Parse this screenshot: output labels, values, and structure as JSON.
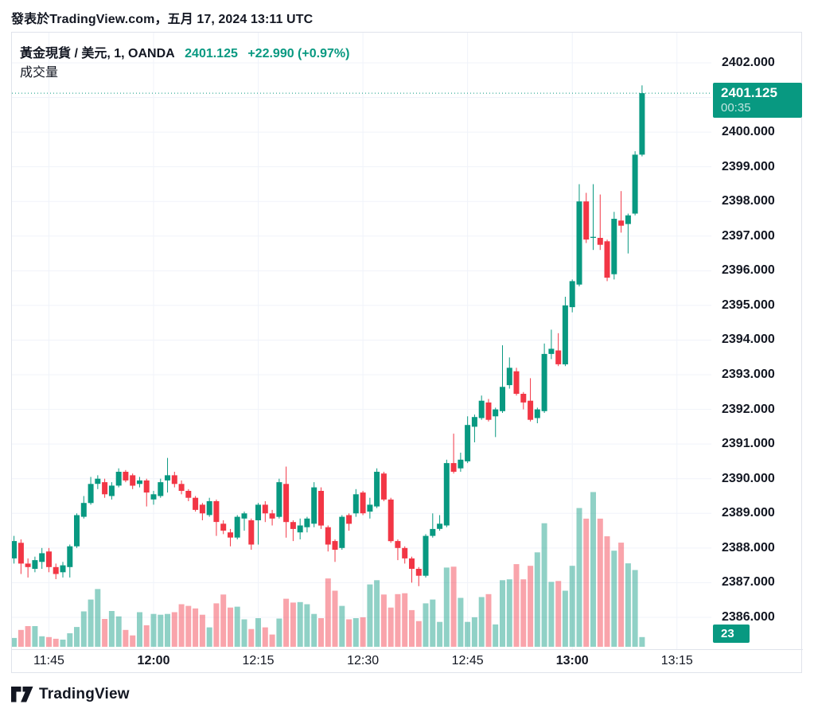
{
  "header": {
    "published_line": "發表於TradingView.com，五月 17, 2024 13:11 UTC"
  },
  "title": {
    "symbol_line": "黃金現貨 / 美元, 1, OANDA",
    "last_price": "2401.125",
    "change": "+22.990 (+0.97%)",
    "indicator_label": "成交量"
  },
  "price_axis": {
    "labels": [
      "2402.000",
      "2400.000",
      "2399.000",
      "2398.000",
      "2397.000",
      "2396.000",
      "2395.000",
      "2394.000",
      "2393.000",
      "2392.000",
      "2391.000",
      "2390.000",
      "2389.000",
      "2388.000",
      "2387.000",
      "2386.000"
    ],
    "last_price_badge": {
      "price": "2401.125",
      "countdown": "00:35",
      "value": 2401.125
    },
    "volume_badge": "23"
  },
  "time_axis": {
    "labels": [
      {
        "t": "11:45",
        "bold": false
      },
      {
        "t": "12:00",
        "bold": true
      },
      {
        "t": "12:15",
        "bold": false
      },
      {
        "t": "12:30",
        "bold": false
      },
      {
        "t": "12:45",
        "bold": false
      },
      {
        "t": "13:00",
        "bold": true
      },
      {
        "t": "13:15",
        "bold": false
      }
    ]
  },
  "footer": {
    "brand": "TradingView"
  },
  "colors": {
    "up": "#089981",
    "down": "#F23645",
    "up_volume": "rgba(8,153,129,0.45)",
    "down_volume": "rgba(242,54,69,0.45)",
    "accent": "#089981",
    "text": "#131722",
    "grid": "#F0F3FA",
    "border": "#E0E3EB",
    "badge_text": "#FFFFFF"
  },
  "chart_data": {
    "type": "candlestick+volume",
    "title": "黃金現貨 / 美元, 1, OANDA",
    "interval_minutes": 1,
    "price_axis_range": [
      2386,
      2402
    ],
    "grid": true,
    "last_price": 2401.125,
    "last_volume": 23,
    "candles": [
      {
        "t": "11:40",
        "o": 2387.7,
        "h": 2388.35,
        "l": 2387.55,
        "c": 2388.2,
        "v": 21
      },
      {
        "t": "11:41",
        "o": 2388.15,
        "h": 2388.25,
        "l": 2387.25,
        "c": 2387.55,
        "v": 40
      },
      {
        "t": "11:42",
        "o": 2387.55,
        "h": 2387.7,
        "l": 2387.15,
        "c": 2387.45,
        "v": 49
      },
      {
        "t": "11:43",
        "o": 2387.4,
        "h": 2387.75,
        "l": 2387.3,
        "c": 2387.65,
        "v": 49
      },
      {
        "t": "11:44",
        "o": 2387.6,
        "h": 2388.0,
        "l": 2387.4,
        "c": 2387.85,
        "v": 25
      },
      {
        "t": "11:45",
        "o": 2387.9,
        "h": 2388.0,
        "l": 2387.3,
        "c": 2387.45,
        "v": 23
      },
      {
        "t": "11:46",
        "o": 2387.45,
        "h": 2387.55,
        "l": 2387.1,
        "c": 2387.25,
        "v": 19
      },
      {
        "t": "11:47",
        "o": 2387.3,
        "h": 2387.6,
        "l": 2387.15,
        "c": 2387.5,
        "v": 17
      },
      {
        "t": "11:48",
        "o": 2387.45,
        "h": 2388.1,
        "l": 2387.15,
        "c": 2388.05,
        "v": 32
      },
      {
        "t": "11:49",
        "o": 2388.05,
        "h": 2389.0,
        "l": 2388.0,
        "c": 2388.95,
        "v": 47
      },
      {
        "t": "11:50",
        "o": 2388.9,
        "h": 2389.5,
        "l": 2388.85,
        "c": 2389.3,
        "v": 84
      },
      {
        "t": "11:51",
        "o": 2389.3,
        "h": 2390.05,
        "l": 2389.25,
        "c": 2389.85,
        "v": 112
      },
      {
        "t": "11:52",
        "o": 2389.85,
        "h": 2390.1,
        "l": 2389.7,
        "c": 2390.0,
        "v": 137
      },
      {
        "t": "11:53",
        "o": 2389.9,
        "h": 2390.0,
        "l": 2389.45,
        "c": 2389.55,
        "v": 66
      },
      {
        "t": "11:54",
        "o": 2389.5,
        "h": 2389.9,
        "l": 2389.4,
        "c": 2389.8,
        "v": 85
      },
      {
        "t": "11:55",
        "o": 2389.8,
        "h": 2390.3,
        "l": 2389.75,
        "c": 2390.2,
        "v": 72
      },
      {
        "t": "11:56",
        "o": 2390.2,
        "h": 2390.25,
        "l": 2389.9,
        "c": 2389.95,
        "v": 40
      },
      {
        "t": "11:57",
        "o": 2390.1,
        "h": 2390.15,
        "l": 2389.7,
        "c": 2389.8,
        "v": 27
      },
      {
        "t": "11:58",
        "o": 2389.85,
        "h": 2390.05,
        "l": 2389.75,
        "c": 2389.95,
        "v": 82
      },
      {
        "t": "11:59",
        "o": 2389.95,
        "h": 2390.0,
        "l": 2389.2,
        "c": 2389.6,
        "v": 51
      },
      {
        "t": "12:00",
        "o": 2389.4,
        "h": 2389.65,
        "l": 2389.25,
        "c": 2389.55,
        "v": 78
      },
      {
        "t": "12:01",
        "o": 2389.5,
        "h": 2390.0,
        "l": 2389.45,
        "c": 2389.9,
        "v": 76
      },
      {
        "t": "12:02",
        "o": 2389.95,
        "h": 2390.6,
        "l": 2389.6,
        "c": 2390.1,
        "v": 78
      },
      {
        "t": "12:03",
        "o": 2390.1,
        "h": 2390.2,
        "l": 2389.75,
        "c": 2389.85,
        "v": 82
      },
      {
        "t": "12:04",
        "o": 2389.85,
        "h": 2389.95,
        "l": 2389.55,
        "c": 2389.65,
        "v": 101
      },
      {
        "t": "12:05",
        "o": 2389.65,
        "h": 2389.7,
        "l": 2389.35,
        "c": 2389.45,
        "v": 97
      },
      {
        "t": "12:06",
        "o": 2389.45,
        "h": 2389.5,
        "l": 2389.05,
        "c": 2389.1,
        "v": 91
      },
      {
        "t": "12:07",
        "o": 2389.25,
        "h": 2389.3,
        "l": 2388.8,
        "c": 2389.0,
        "v": 76
      },
      {
        "t": "12:08",
        "o": 2388.95,
        "h": 2389.45,
        "l": 2388.9,
        "c": 2389.35,
        "v": 46
      },
      {
        "t": "12:09",
        "o": 2389.35,
        "h": 2389.4,
        "l": 2388.35,
        "c": 2388.75,
        "v": 103
      },
      {
        "t": "12:10",
        "o": 2388.7,
        "h": 2388.8,
        "l": 2388.4,
        "c": 2388.5,
        "v": 124
      },
      {
        "t": "12:11",
        "o": 2388.45,
        "h": 2388.55,
        "l": 2388.05,
        "c": 2388.3,
        "v": 93
      },
      {
        "t": "12:12",
        "o": 2388.3,
        "h": 2388.95,
        "l": 2388.25,
        "c": 2388.9,
        "v": 95
      },
      {
        "t": "12:13",
        "o": 2388.85,
        "h": 2389.05,
        "l": 2388.5,
        "c": 2389.0,
        "v": 65
      },
      {
        "t": "12:14",
        "o": 2388.8,
        "h": 2388.85,
        "l": 2387.95,
        "c": 2388.1,
        "v": 42
      },
      {
        "t": "12:15",
        "o": 2388.8,
        "h": 2389.3,
        "l": 2388.1,
        "c": 2389.25,
        "v": 68
      },
      {
        "t": "12:16",
        "o": 2389.25,
        "h": 2389.35,
        "l": 2388.75,
        "c": 2389.0,
        "v": 46
      },
      {
        "t": "12:17",
        "o": 2389.0,
        "h": 2389.1,
        "l": 2388.65,
        "c": 2388.85,
        "v": 29
      },
      {
        "t": "12:18",
        "o": 2388.9,
        "h": 2390.0,
        "l": 2388.85,
        "c": 2389.9,
        "v": 67
      },
      {
        "t": "12:19",
        "o": 2389.85,
        "h": 2390.35,
        "l": 2388.3,
        "c": 2388.75,
        "v": 114
      },
      {
        "t": "12:20",
        "o": 2388.75,
        "h": 2388.8,
        "l": 2388.2,
        "c": 2388.55,
        "v": 105
      },
      {
        "t": "12:21",
        "o": 2388.45,
        "h": 2388.85,
        "l": 2388.25,
        "c": 2388.65,
        "v": 106
      },
      {
        "t": "12:22",
        "o": 2388.6,
        "h": 2388.9,
        "l": 2388.45,
        "c": 2388.85,
        "v": 101
      },
      {
        "t": "12:23",
        "o": 2388.7,
        "h": 2389.9,
        "l": 2388.6,
        "c": 2389.75,
        "v": 78
      },
      {
        "t": "12:24",
        "o": 2389.65,
        "h": 2389.75,
        "l": 2388.55,
        "c": 2388.65,
        "v": 68
      },
      {
        "t": "12:25",
        "o": 2388.6,
        "h": 2388.65,
        "l": 2387.9,
        "c": 2388.1,
        "v": 162
      },
      {
        "t": "12:26",
        "o": 2388.2,
        "h": 2388.25,
        "l": 2387.6,
        "c": 2387.95,
        "v": 133
      },
      {
        "t": "12:27",
        "o": 2388.0,
        "h": 2388.95,
        "l": 2387.95,
        "c": 2388.9,
        "v": 97
      },
      {
        "t": "12:28",
        "o": 2388.95,
        "h": 2389.0,
        "l": 2388.5,
        "c": 2388.7,
        "v": 65
      },
      {
        "t": "12:29",
        "o": 2389.0,
        "h": 2389.7,
        "l": 2388.9,
        "c": 2389.55,
        "v": 68
      },
      {
        "t": "12:30",
        "o": 2389.6,
        "h": 2389.65,
        "l": 2388.95,
        "c": 2389.0,
        "v": 70
      },
      {
        "t": "12:31",
        "o": 2389.05,
        "h": 2389.45,
        "l": 2388.85,
        "c": 2389.25,
        "v": 148
      },
      {
        "t": "12:32",
        "o": 2389.2,
        "h": 2390.3,
        "l": 2389.15,
        "c": 2390.2,
        "v": 158
      },
      {
        "t": "12:33",
        "o": 2390.15,
        "h": 2390.2,
        "l": 2389.35,
        "c": 2389.4,
        "v": 124
      },
      {
        "t": "12:34",
        "o": 2389.4,
        "h": 2389.45,
        "l": 2388.15,
        "c": 2388.2,
        "v": 93
      },
      {
        "t": "12:35",
        "o": 2388.2,
        "h": 2388.25,
        "l": 2387.65,
        "c": 2388.0,
        "v": 125
      },
      {
        "t": "12:36",
        "o": 2388.0,
        "h": 2388.05,
        "l": 2387.55,
        "c": 2387.7,
        "v": 127
      },
      {
        "t": "12:37",
        "o": 2387.7,
        "h": 2387.75,
        "l": 2387.0,
        "c": 2387.4,
        "v": 87
      },
      {
        "t": "12:38",
        "o": 2387.4,
        "h": 2387.45,
        "l": 2386.9,
        "c": 2387.2,
        "v": 61
      },
      {
        "t": "12:39",
        "o": 2387.2,
        "h": 2388.4,
        "l": 2387.15,
        "c": 2388.35,
        "v": 103
      },
      {
        "t": "12:40",
        "o": 2388.35,
        "h": 2389.0,
        "l": 2388.3,
        "c": 2388.55,
        "v": 112
      },
      {
        "t": "12:41",
        "o": 2388.55,
        "h": 2388.95,
        "l": 2388.5,
        "c": 2388.7,
        "v": 59
      },
      {
        "t": "12:42",
        "o": 2388.65,
        "h": 2390.55,
        "l": 2388.6,
        "c": 2390.45,
        "v": 188
      },
      {
        "t": "12:43",
        "o": 2390.45,
        "h": 2391.3,
        "l": 2390.15,
        "c": 2390.2,
        "v": 190
      },
      {
        "t": "12:44",
        "o": 2390.3,
        "h": 2390.75,
        "l": 2390.2,
        "c": 2390.55,
        "v": 116
      },
      {
        "t": "12:45",
        "o": 2390.5,
        "h": 2391.8,
        "l": 2390.45,
        "c": 2391.55,
        "v": 59
      },
      {
        "t": "12:46",
        "o": 2391.5,
        "h": 2391.85,
        "l": 2391.05,
        "c": 2391.78,
        "v": 70
      },
      {
        "t": "12:47",
        "o": 2391.75,
        "h": 2392.4,
        "l": 2391.7,
        "c": 2392.25,
        "v": 118
      },
      {
        "t": "12:48",
        "o": 2392.2,
        "h": 2392.3,
        "l": 2391.65,
        "c": 2391.7,
        "v": 125
      },
      {
        "t": "12:49",
        "o": 2391.8,
        "h": 2392.05,
        "l": 2391.2,
        "c": 2392.0,
        "v": 53
      },
      {
        "t": "12:50",
        "o": 2391.95,
        "h": 2393.85,
        "l": 2391.9,
        "c": 2392.65,
        "v": 158
      },
      {
        "t": "12:51",
        "o": 2392.7,
        "h": 2393.5,
        "l": 2392.6,
        "c": 2393.2,
        "v": 160
      },
      {
        "t": "12:52",
        "o": 2393.1,
        "h": 2393.2,
        "l": 2392.4,
        "c": 2392.45,
        "v": 196
      },
      {
        "t": "12:53",
        "o": 2392.45,
        "h": 2392.5,
        "l": 2392.0,
        "c": 2392.2,
        "v": 160
      },
      {
        "t": "12:54",
        "o": 2392.25,
        "h": 2392.9,
        "l": 2391.65,
        "c": 2391.7,
        "v": 192
      },
      {
        "t": "12:55",
        "o": 2391.75,
        "h": 2392.05,
        "l": 2391.6,
        "c": 2392.0,
        "v": 224
      },
      {
        "t": "12:56",
        "o": 2391.95,
        "h": 2393.9,
        "l": 2391.9,
        "c": 2393.6,
        "v": 293
      },
      {
        "t": "12:57",
        "o": 2393.6,
        "h": 2394.3,
        "l": 2393.45,
        "c": 2393.75,
        "v": 154
      },
      {
        "t": "12:58",
        "o": 2393.7,
        "h": 2394.2,
        "l": 2393.25,
        "c": 2393.3,
        "v": 156
      },
      {
        "t": "12:59",
        "o": 2393.3,
        "h": 2395.25,
        "l": 2393.25,
        "c": 2395.0,
        "v": 133
      },
      {
        "t": "13:00",
        "o": 2394.95,
        "h": 2395.75,
        "l": 2394.8,
        "c": 2395.7,
        "v": 192
      },
      {
        "t": "13:01",
        "o": 2395.6,
        "h": 2398.5,
        "l": 2395.55,
        "c": 2398.0,
        "v": 329
      },
      {
        "t": "13:02",
        "o": 2398.0,
        "h": 2398.25,
        "l": 2396.8,
        "c": 2396.9,
        "v": 304
      },
      {
        "t": "13:03",
        "o": 2396.95,
        "h": 2398.5,
        "l": 2396.6,
        "c": 2396.98,
        "v": 367
      },
      {
        "t": "13:04",
        "o": 2396.95,
        "h": 2398.2,
        "l": 2396.6,
        "c": 2396.75,
        "v": 304
      },
      {
        "t": "13:05",
        "o": 2396.85,
        "h": 2396.9,
        "l": 2395.7,
        "c": 2395.8,
        "v": 262
      },
      {
        "t": "13:06",
        "o": 2395.9,
        "h": 2397.7,
        "l": 2395.75,
        "c": 2397.5,
        "v": 228
      },
      {
        "t": "13:07",
        "o": 2397.45,
        "h": 2398.3,
        "l": 2397.1,
        "c": 2397.3,
        "v": 247
      },
      {
        "t": "13:08",
        "o": 2397.35,
        "h": 2397.65,
        "l": 2396.5,
        "c": 2397.6,
        "v": 198
      },
      {
        "t": "13:09",
        "o": 2397.65,
        "h": 2399.45,
        "l": 2397.6,
        "c": 2399.35,
        "v": 182
      },
      {
        "t": "13:10",
        "o": 2399.35,
        "h": 2401.35,
        "l": 2399.3,
        "c": 2401.125,
        "v": 23
      }
    ]
  }
}
